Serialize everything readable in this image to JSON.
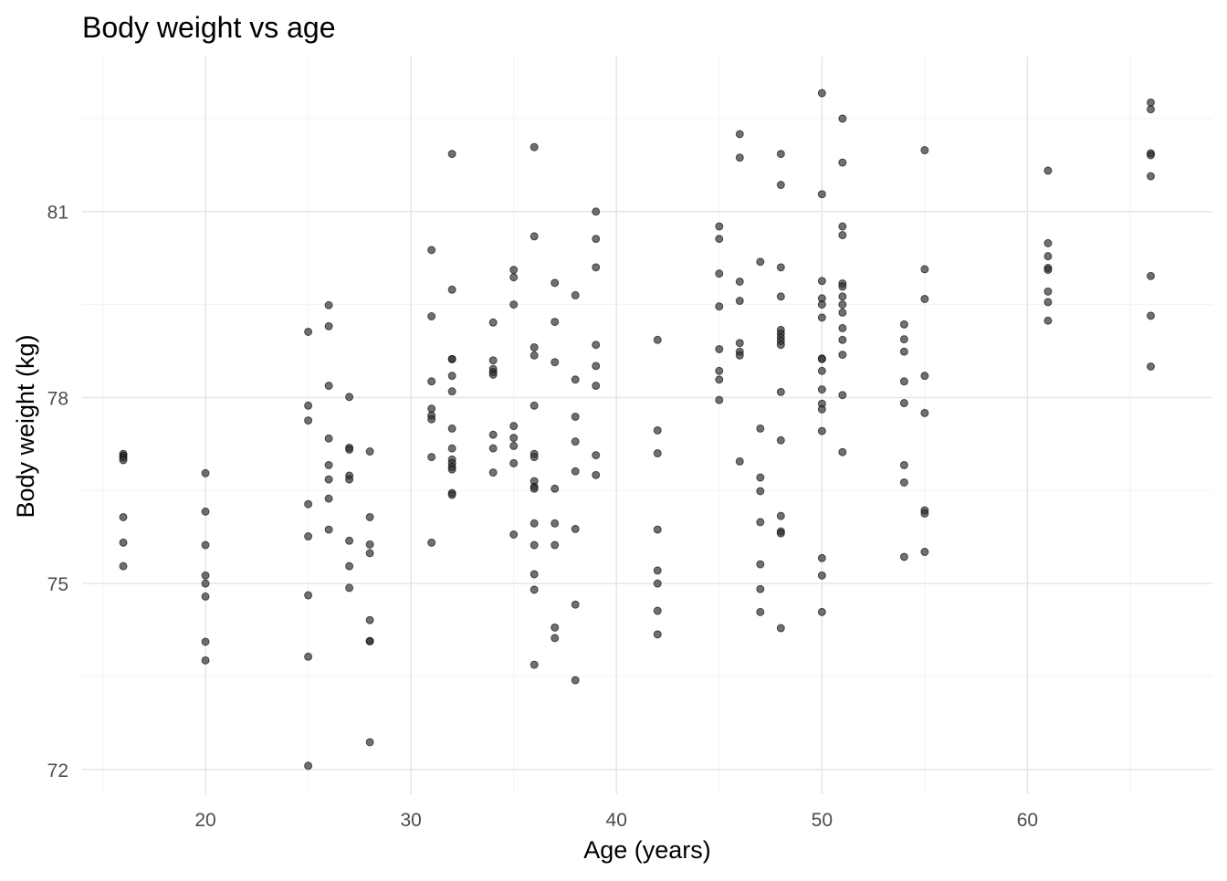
{
  "chart_data": {
    "type": "scatter",
    "title": "Body weight vs age",
    "xlabel": "Age (years)",
    "ylabel": "Body weight (kg)",
    "xlim": [
      14,
      69
    ],
    "ylim": [
      71.6,
      83.5
    ],
    "x_ticks": [
      20,
      30,
      40,
      50,
      60
    ],
    "y_ticks": [
      72,
      75,
      78,
      81
    ],
    "grid": true,
    "legend": "none",
    "point_color": "#333333",
    "groups": [
      {
        "x": 16,
        "y": [
          77.09,
          77.06,
          77.03,
          76.99,
          76.07,
          75.66,
          75.28
        ]
      },
      {
        "x": 20,
        "y": [
          76.78,
          76.16,
          75.62,
          75.13,
          75.0,
          74.79,
          74.06,
          73.76
        ]
      },
      {
        "x": 25,
        "y": [
          79.06,
          77.87,
          77.63,
          76.28,
          75.76,
          74.81,
          73.82,
          72.06
        ]
      },
      {
        "x": 26,
        "y": [
          79.49,
          79.15,
          78.19,
          77.34,
          76.91,
          76.68,
          76.37,
          75.87
        ]
      },
      {
        "x": 27,
        "y": [
          78.01,
          77.19,
          77.16,
          76.74,
          76.68,
          75.69,
          75.28,
          74.93
        ]
      },
      {
        "x": 28,
        "y": [
          77.13,
          76.07,
          75.63,
          75.49,
          74.41,
          74.07,
          74.07,
          72.44
        ]
      },
      {
        "x": 31,
        "y": [
          80.38,
          79.31,
          78.26,
          77.82,
          77.71,
          77.65,
          77.04,
          75.66
        ]
      },
      {
        "x": 32,
        "y": [
          81.93,
          79.74,
          78.62,
          78.62,
          78.35,
          78.1,
          77.5,
          77.18,
          77.0,
          76.94,
          76.88,
          76.84,
          76.46,
          76.43
        ]
      },
      {
        "x": 34,
        "y": [
          79.21,
          78.6,
          78.46,
          78.41,
          78.37,
          77.4,
          77.18,
          76.79
        ]
      },
      {
        "x": 35,
        "y": [
          80.06,
          79.94,
          79.5,
          77.54,
          77.35,
          77.22,
          76.94,
          75.79
        ]
      },
      {
        "x": 36,
        "y": [
          82.04,
          80.6,
          78.81,
          78.68,
          77.87,
          77.09,
          77.04,
          76.65,
          76.56,
          76.53,
          75.97,
          75.62,
          75.15,
          74.9,
          73.69
        ]
      },
      {
        "x": 37,
        "y": [
          79.85,
          79.22,
          78.57,
          76.53,
          75.97,
          75.62,
          74.29,
          74.12
        ]
      },
      {
        "x": 38,
        "y": [
          79.65,
          78.29,
          77.69,
          77.29,
          76.81,
          75.88,
          74.66,
          73.44
        ]
      },
      {
        "x": 39,
        "y": [
          81.0,
          80.56,
          80.1,
          78.85,
          78.51,
          78.19,
          77.07,
          76.75
        ]
      },
      {
        "x": 42,
        "y": [
          78.93,
          77.47,
          77.1,
          75.87,
          75.21,
          75.0,
          74.56,
          74.18
        ]
      },
      {
        "x": 45,
        "y": [
          80.76,
          80.56,
          80.0,
          79.47,
          78.78,
          78.43,
          78.29,
          77.96
        ]
      },
      {
        "x": 46,
        "y": [
          82.25,
          81.87,
          79.87,
          79.56,
          78.88,
          78.74,
          78.68,
          76.97
        ]
      },
      {
        "x": 47,
        "y": [
          80.19,
          77.5,
          76.71,
          76.49,
          75.99,
          75.31,
          74.91,
          74.54
        ]
      },
      {
        "x": 48,
        "y": [
          81.93,
          81.43,
          80.1,
          79.63,
          79.09,
          79.03,
          78.97,
          78.91,
          78.85,
          78.09,
          77.31,
          76.09,
          75.84,
          75.81,
          74.28
        ]
      },
      {
        "x": 50,
        "y": [
          82.91,
          81.28,
          79.88,
          79.6,
          79.5,
          79.29,
          78.63,
          78.62,
          78.43,
          78.13,
          77.9,
          77.81,
          77.46,
          75.41,
          75.13,
          74.54
        ]
      },
      {
        "x": 51,
        "y": [
          82.5,
          81.79,
          80.76,
          80.62,
          79.84,
          79.79,
          79.63,
          79.5,
          79.37,
          79.12,
          78.93,
          78.69,
          78.04,
          77.12
        ]
      },
      {
        "x": 54,
        "y": [
          79.18,
          78.94,
          78.74,
          78.26,
          77.91,
          76.91,
          76.63,
          75.43
        ]
      },
      {
        "x": 55,
        "y": [
          81.99,
          80.07,
          79.59,
          78.35,
          77.75,
          76.18,
          76.13,
          75.51
        ]
      },
      {
        "x": 61,
        "y": [
          81.66,
          80.49,
          80.28,
          80.09,
          80.06,
          79.71,
          79.54,
          79.24
        ]
      },
      {
        "x": 66,
        "y": [
          82.76,
          82.65,
          81.94,
          81.91,
          81.57,
          79.96,
          79.32,
          78.5
        ]
      }
    ]
  }
}
